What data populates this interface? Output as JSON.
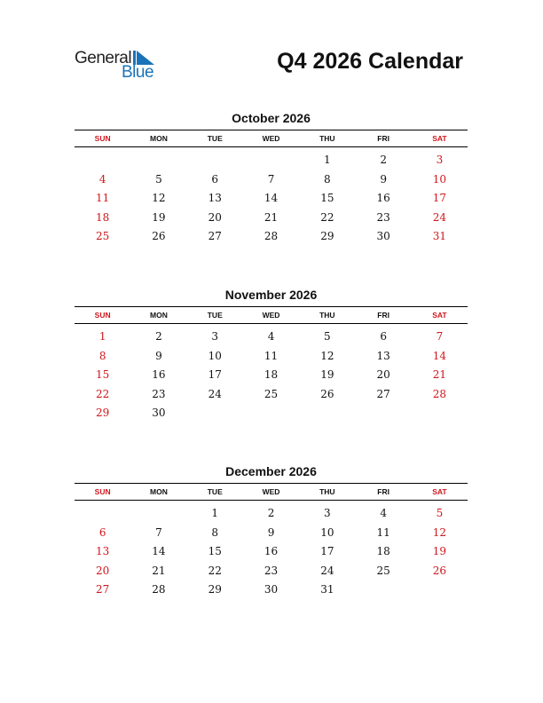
{
  "logo": {
    "line1": "General",
    "line2": "Blue"
  },
  "title": "Q4 2026 Calendar",
  "weekdays": [
    "SUN",
    "MON",
    "TUE",
    "WED",
    "THU",
    "FRI",
    "SAT"
  ],
  "colors": {
    "weekend": "#d0151b",
    "brand": "#1a73b8"
  },
  "months": [
    {
      "name": "October 2026",
      "weeks": [
        [
          null,
          null,
          null,
          null,
          1,
          2,
          3
        ],
        [
          4,
          5,
          6,
          7,
          8,
          9,
          10
        ],
        [
          11,
          12,
          13,
          14,
          15,
          16,
          17
        ],
        [
          18,
          19,
          20,
          21,
          22,
          23,
          24
        ],
        [
          25,
          26,
          27,
          28,
          29,
          30,
          31
        ]
      ]
    },
    {
      "name": "November 2026",
      "weeks": [
        [
          1,
          2,
          3,
          4,
          5,
          6,
          7
        ],
        [
          8,
          9,
          10,
          11,
          12,
          13,
          14
        ],
        [
          15,
          16,
          17,
          18,
          19,
          20,
          21
        ],
        [
          22,
          23,
          24,
          25,
          26,
          27,
          28
        ],
        [
          29,
          30,
          null,
          null,
          null,
          null,
          null
        ]
      ]
    },
    {
      "name": "December 2026",
      "weeks": [
        [
          null,
          null,
          1,
          2,
          3,
          4,
          5
        ],
        [
          6,
          7,
          8,
          9,
          10,
          11,
          12
        ],
        [
          13,
          14,
          15,
          16,
          17,
          18,
          19
        ],
        [
          20,
          21,
          22,
          23,
          24,
          25,
          26
        ],
        [
          27,
          28,
          29,
          30,
          31,
          null,
          null
        ]
      ]
    }
  ]
}
